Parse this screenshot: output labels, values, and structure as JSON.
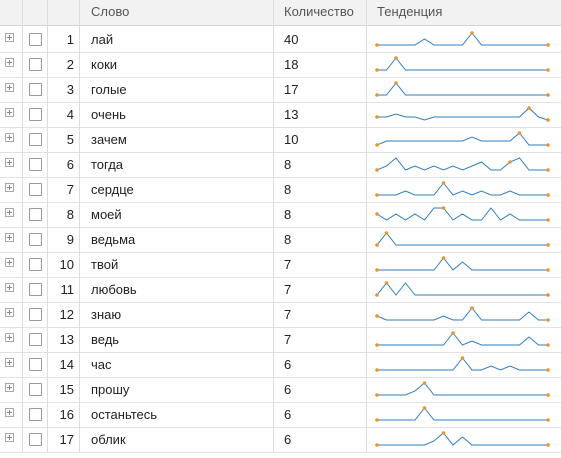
{
  "header": {
    "col_word": "Слово",
    "col_count": "Количество",
    "col_trend": "Тенденция"
  },
  "colors": {
    "line": "#2f7ebf",
    "marker": "#e69532"
  },
  "rows": [
    {
      "index": "1",
      "word": "лай",
      "count": "40",
      "trend": [
        0,
        0,
        0,
        0,
        0,
        2,
        0,
        0,
        0,
        0,
        4,
        0,
        0,
        0,
        0,
        0,
        0,
        0,
        0
      ],
      "peak": 10
    },
    {
      "index": "2",
      "word": "коки",
      "count": "18",
      "trend": [
        0,
        0,
        5,
        0,
        0,
        0,
        0,
        0,
        0,
        0,
        0,
        0,
        0,
        0,
        0,
        0,
        0,
        0,
        0
      ],
      "peak": 2
    },
    {
      "index": "3",
      "word": "голые",
      "count": "17",
      "trend": [
        0,
        0,
        5,
        0,
        0,
        0,
        0,
        0,
        0,
        0,
        0,
        0,
        0,
        0,
        0,
        0,
        0,
        0,
        0
      ],
      "peak": 2
    },
    {
      "index": "4",
      "word": "очень",
      "count": "13",
      "trend": [
        1,
        1,
        2,
        1,
        1,
        0,
        1,
        1,
        1,
        1,
        1,
        1,
        1,
        1,
        1,
        1,
        4,
        1,
        0
      ],
      "peak": 16
    },
    {
      "index": "5",
      "word": "зачем",
      "count": "10",
      "trend": [
        0,
        1,
        1,
        1,
        1,
        1,
        1,
        1,
        1,
        1,
        2,
        1,
        1,
        1,
        1,
        3,
        0,
        0,
        0
      ],
      "peak": 15
    },
    {
      "index": "6",
      "word": "тогда",
      "count": "8",
      "trend": [
        0,
        1,
        3,
        0,
        1,
        0,
        1,
        0,
        1,
        0,
        1,
        2,
        0,
        0,
        2,
        3,
        0,
        0,
        0
      ],
      "peak": 14
    },
    {
      "index": "7",
      "word": "сердце",
      "count": "8",
      "trend": [
        0,
        0,
        0,
        1,
        0,
        0,
        0,
        3,
        0,
        1,
        0,
        1,
        0,
        0,
        1,
        0,
        0,
        0,
        0
      ],
      "peak": 7
    },
    {
      "index": "8",
      "word": "моей",
      "count": "8",
      "trend": [
        1,
        0,
        1,
        0,
        1,
        0,
        2,
        2,
        0,
        1,
        0,
        0,
        2,
        0,
        1,
        0,
        0,
        0,
        0
      ],
      "peak": 7
    },
    {
      "index": "9",
      "word": "ведьма",
      "count": "8",
      "trend": [
        0,
        2,
        0,
        0,
        0,
        0,
        0,
        0,
        0,
        0,
        0,
        0,
        0,
        0,
        0,
        0,
        0,
        0,
        0
      ],
      "peak": 1
    },
    {
      "index": "10",
      "word": "твой",
      "count": "7",
      "trend": [
        0,
        0,
        0,
        0,
        0,
        0,
        0,
        3,
        0,
        2,
        0,
        0,
        0,
        0,
        0,
        0,
        0,
        0,
        0
      ],
      "peak": 7
    },
    {
      "index": "11",
      "word": "любовь",
      "count": "7",
      "trend": [
        0,
        2,
        0,
        2,
        0,
        0,
        0,
        0,
        0,
        0,
        0,
        0,
        0,
        0,
        0,
        0,
        0,
        0,
        0
      ],
      "peak": 1
    },
    {
      "index": "12",
      "word": "знаю",
      "count": "7",
      "trend": [
        1,
        0,
        0,
        0,
        0,
        0,
        0,
        1,
        0,
        0,
        3,
        0,
        0,
        0,
        0,
        0,
        2,
        0,
        0
      ],
      "peak": 10
    },
    {
      "index": "13",
      "word": "ведь",
      "count": "7",
      "trend": [
        0,
        0,
        0,
        0,
        0,
        0,
        0,
        0,
        3,
        0,
        1,
        0,
        0,
        0,
        0,
        0,
        2,
        0,
        0
      ],
      "peak": 8
    },
    {
      "index": "14",
      "word": "час",
      "count": "6",
      "trend": [
        0,
        0,
        0,
        0,
        0,
        0,
        0,
        0,
        0,
        3,
        0,
        0,
        1,
        0,
        1,
        0,
        0,
        0,
        0
      ],
      "peak": 9
    },
    {
      "index": "15",
      "word": "прошу",
      "count": "6",
      "trend": [
        0,
        0,
        0,
        0,
        1,
        3,
        0,
        0,
        0,
        0,
        0,
        0,
        0,
        0,
        0,
        0,
        0,
        0,
        0
      ],
      "peak": 5
    },
    {
      "index": "16",
      "word": "останьтесь",
      "count": "6",
      "trend": [
        0,
        0,
        0,
        0,
        0,
        3,
        0,
        0,
        0,
        0,
        0,
        0,
        0,
        0,
        0,
        0,
        0,
        0,
        0
      ],
      "peak": 5
    },
    {
      "index": "17",
      "word": "облик",
      "count": "6",
      "trend": [
        0,
        0,
        0,
        0,
        0,
        0,
        1,
        3,
        0,
        2,
        0,
        0,
        0,
        0,
        0,
        0,
        0,
        0,
        0
      ],
      "peak": 7
    }
  ]
}
